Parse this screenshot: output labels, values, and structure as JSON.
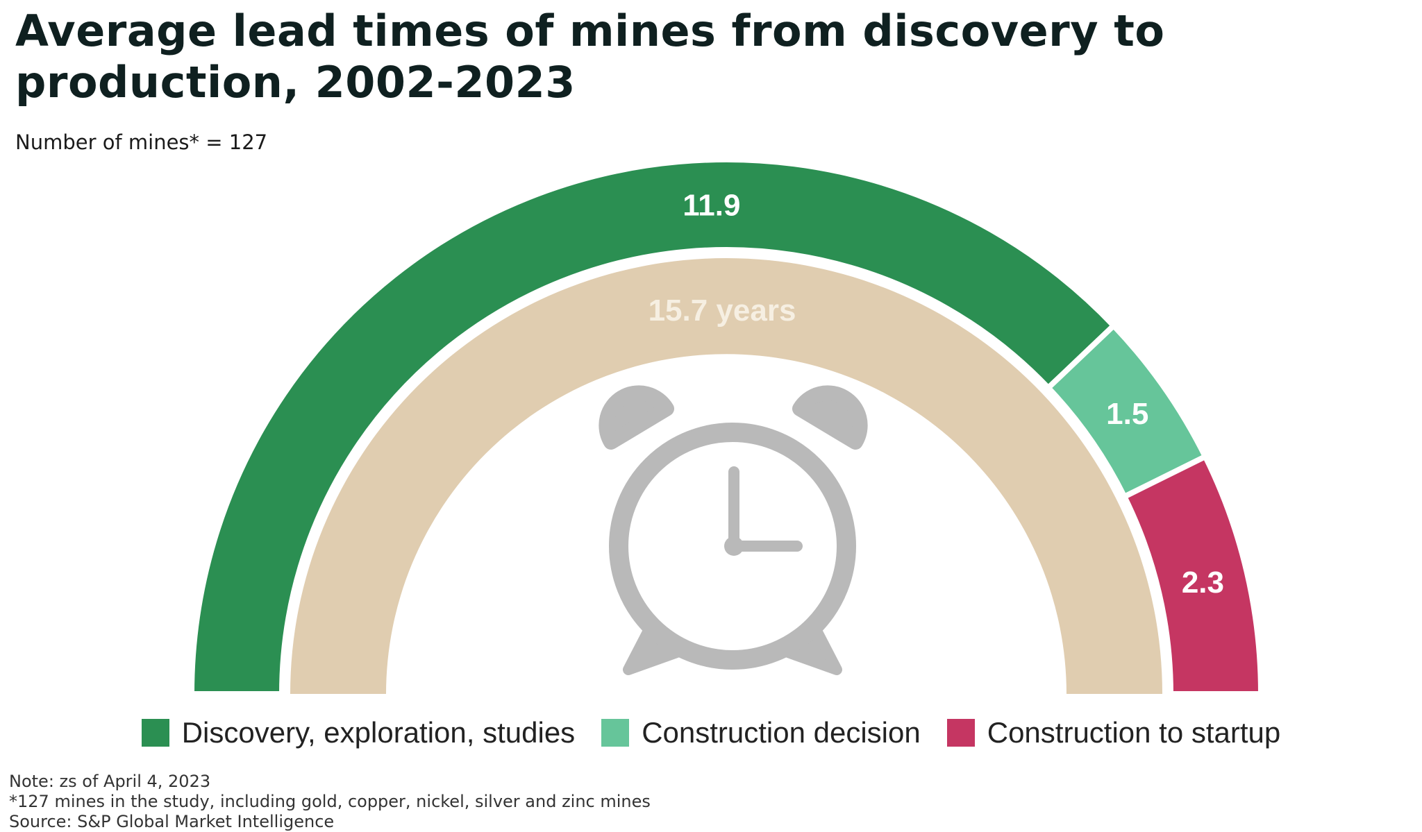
{
  "title": "Average lead times of mines from discovery to production, 2002-2023",
  "subtitle": "Number of mines* = 127",
  "chart_data": {
    "type": "pie",
    "shape": "semicircle-donut",
    "total_label": "15.7 years",
    "total": 15.7,
    "segments": [
      {
        "name": "Discovery, exploration, studies",
        "value": 11.9,
        "label": "11.9",
        "color": "#2b8f52"
      },
      {
        "name": "Construction decision",
        "value": 1.5,
        "label": "1.5",
        "color": "#66c59a"
      },
      {
        "name": "Construction to startup",
        "value": 2.3,
        "label": "2.3",
        "color": "#c53662"
      }
    ],
    "inner_ring_color": "#e0cdb0",
    "center_icon": "alarm-clock-icon",
    "center_icon_color": "#b9b9b9"
  },
  "legend": [
    {
      "label": "Discovery, exploration, studies",
      "color": "#2b8f52"
    },
    {
      "label": "Construction decision",
      "color": "#66c59a"
    },
    {
      "label": "Construction to startup",
      "color": "#c53662"
    }
  ],
  "notes": [
    "Note: zs of April 4, 2023",
    "*127 mines in the study, including gold, copper, nickel, silver and zinc mines",
    "Source: S&P Global Market Intelligence"
  ]
}
